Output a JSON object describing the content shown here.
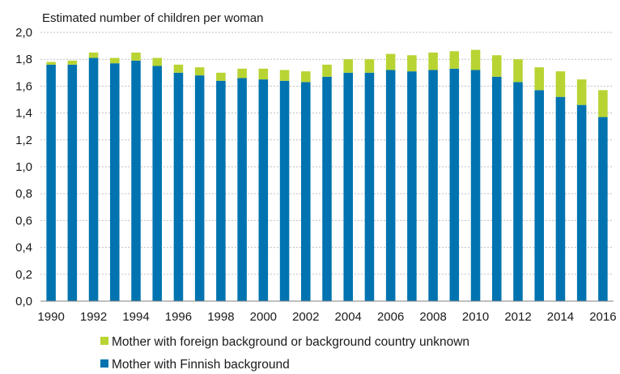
{
  "chart_data": {
    "type": "bar",
    "stacked": true,
    "title": "Estimated number of children per woman",
    "xlabel": "",
    "ylabel": "",
    "ylim": [
      0,
      2.0
    ],
    "yticks": [
      "0,0",
      "0,2",
      "0,4",
      "0,6",
      "0,8",
      "1,0",
      "1,2",
      "1,4",
      "1,6",
      "1,8",
      "2,0"
    ],
    "ytick_values": [
      0,
      0.2,
      0.4,
      0.6,
      0.8,
      1.0,
      1.2,
      1.4,
      1.6,
      1.8,
      2.0
    ],
    "grid": true,
    "legend_position": "bottom",
    "categories": [
      "1990",
      "1991",
      "1992",
      "1993",
      "1994",
      "1995",
      "1996",
      "1997",
      "1998",
      "1999",
      "2000",
      "2001",
      "2002",
      "2003",
      "2004",
      "2005",
      "2006",
      "2007",
      "2008",
      "2009",
      "2010",
      "2011",
      "2012",
      "2013",
      "2014",
      "2015",
      "2016"
    ],
    "xtick_labels": [
      "1990",
      "",
      "1992",
      "",
      "1994",
      "",
      "1996",
      "",
      "1998",
      "",
      "2000",
      "",
      "2002",
      "",
      "2004",
      "",
      "2006",
      "",
      "2008",
      "",
      "2010",
      "",
      "2012",
      "",
      "2014",
      "",
      "2016"
    ],
    "series": [
      {
        "name": "Mother with Finnish background",
        "color": "#0073b0",
        "values": [
          1.76,
          1.76,
          1.81,
          1.77,
          1.79,
          1.75,
          1.7,
          1.68,
          1.64,
          1.66,
          1.65,
          1.64,
          1.63,
          1.67,
          1.7,
          1.7,
          1.72,
          1.71,
          1.72,
          1.73,
          1.72,
          1.67,
          1.63,
          1.57,
          1.52,
          1.46,
          1.37
        ]
      },
      {
        "name": "Mother with foreign background or background country unknown",
        "color": "#b7d433",
        "values": [
          0.02,
          0.03,
          0.04,
          0.04,
          0.06,
          0.06,
          0.06,
          0.06,
          0.06,
          0.07,
          0.08,
          0.08,
          0.08,
          0.09,
          0.1,
          0.1,
          0.12,
          0.12,
          0.13,
          0.13,
          0.15,
          0.16,
          0.17,
          0.17,
          0.19,
          0.19,
          0.2
        ]
      }
    ],
    "legend_order": [
      1,
      0
    ]
  }
}
